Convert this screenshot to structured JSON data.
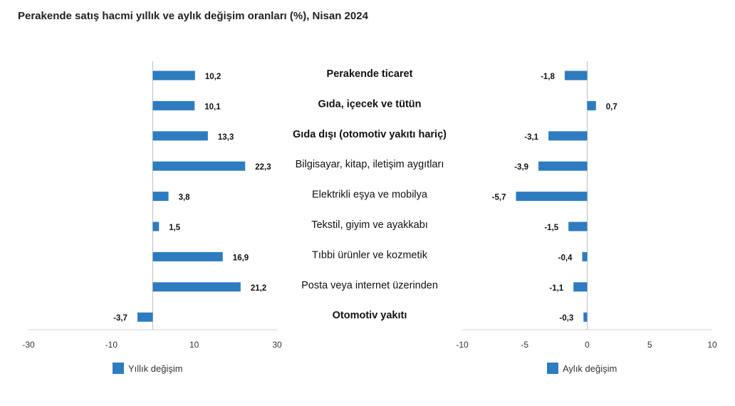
{
  "title": "Perakende satış hacmi yıllık ve aylık değişim oranları (%), Nisan 2024",
  "colors": {
    "bar": "#2e7cbf"
  },
  "chart_data": {
    "type": "bar",
    "orientation": "horizontal",
    "categories": [
      "Perakende ticaret",
      "Gıda, içecek ve tütün",
      "Gıda dışı (otomotiv yakıtı hariç)",
      "Bilgisayar, kitap, iletişim aygıtları",
      "Elektrikli eşya ve mobilya",
      "Tekstil, giyim ve ayakkabı",
      "Tıbbi ürünler ve kozmetik",
      "Posta veya internet üzerinden",
      "Otomotiv yakıtı"
    ],
    "bold_categories": [
      true,
      true,
      true,
      false,
      false,
      false,
      false,
      false,
      true
    ],
    "series": [
      {
        "name": "Yıllık değişim",
        "values": [
          10.2,
          10.1,
          13.3,
          22.3,
          3.8,
          1.5,
          16.9,
          21.2,
          -3.7
        ],
        "labels": [
          "10,2",
          "10,1",
          "13,3",
          "22,3",
          "3,8",
          "1,5",
          "16,9",
          "21,2",
          "-3,7"
        ],
        "xlim": [
          -30,
          30
        ],
        "ticks": [
          -30,
          -10,
          10,
          30
        ],
        "tick_labels": [
          "-30",
          "-10",
          "10",
          "30"
        ]
      },
      {
        "name": "Aylık değişim",
        "values": [
          -1.8,
          0.7,
          -3.1,
          -3.9,
          -5.7,
          -1.5,
          -0.4,
          -1.1,
          -0.3
        ],
        "labels": [
          "-1,8",
          "0,7",
          "-3,1",
          "-3,9",
          "-5,7",
          "-1,5",
          "-0,4",
          "-1,1",
          "-0,3"
        ],
        "xlim": [
          -10,
          10
        ],
        "ticks": [
          -10,
          -5,
          0,
          5,
          10
        ],
        "tick_labels": [
          "-10",
          "-5",
          "0",
          "5",
          "10"
        ]
      }
    ],
    "legend": "bottom",
    "grid": false
  }
}
